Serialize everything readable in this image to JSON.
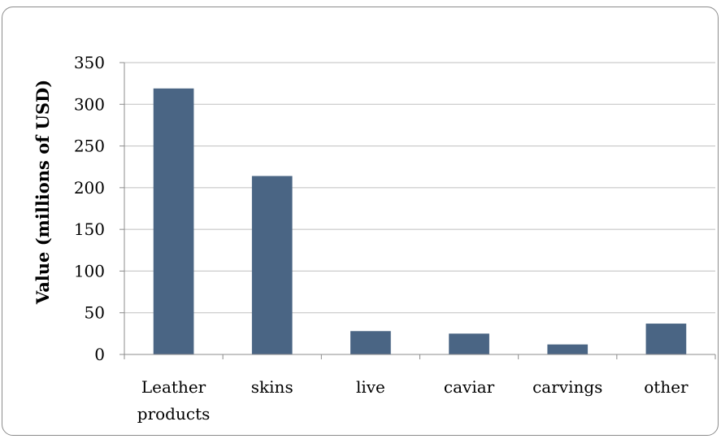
{
  "chart_data": {
    "type": "bar",
    "title": "",
    "xlabel": "",
    "ylabel": "Value (millions of USD)",
    "categories": [
      [
        "Leather",
        "products"
      ],
      [
        "skins"
      ],
      [
        "live"
      ],
      [
        "caviar"
      ],
      [
        "carvings"
      ],
      [
        "other"
      ]
    ],
    "values": [
      319,
      214,
      28,
      25,
      12,
      37
    ],
    "ylim": [
      0,
      350
    ],
    "yticks": [
      "0",
      "50",
      "100",
      "150",
      "200",
      "250",
      "300",
      "350"
    ],
    "grid": true,
    "legend": "none",
    "colors": {
      "bar": "#4A6584",
      "grid": "#BFBFBF",
      "axis": "#8C8C8C"
    }
  }
}
